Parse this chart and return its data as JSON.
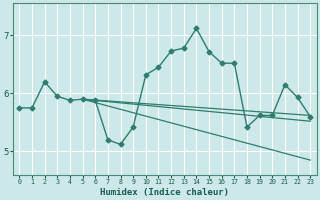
{
  "xlabel": "Humidex (Indice chaleur)",
  "bg_color": "#cce8e8",
  "grid_color": "#ffffff",
  "line_color": "#2e7d6e",
  "xlim": [
    -0.5,
    23.5
  ],
  "ylim": [
    4.6,
    7.55
  ],
  "xticks": [
    0,
    1,
    2,
    3,
    4,
    5,
    6,
    7,
    8,
    9,
    10,
    11,
    12,
    13,
    14,
    15,
    16,
    17,
    18,
    19,
    20,
    21,
    22,
    23
  ],
  "yticks": [
    5,
    6,
    7
  ],
  "main_line": {
    "x": [
      0,
      1,
      2,
      3,
      4,
      5,
      6,
      7,
      8,
      9,
      10,
      11,
      12,
      13,
      14,
      15,
      16,
      17,
      18,
      19,
      20,
      21,
      22,
      23
    ],
    "y": [
      5.75,
      5.75,
      6.2,
      5.95,
      5.88,
      5.9,
      5.88,
      5.2,
      5.12,
      5.42,
      6.32,
      6.45,
      6.73,
      6.78,
      7.12,
      6.72,
      6.52,
      6.52,
      5.42,
      5.62,
      5.62,
      6.15,
      5.93,
      5.6
    ]
  },
  "straight_lines": [
    {
      "x0": 5,
      "y0": 5.9,
      "x1": 23,
      "y1": 5.62
    },
    {
      "x0": 5,
      "y0": 5.9,
      "x1": 23,
      "y1": 5.52
    },
    {
      "x0": 5,
      "y0": 5.9,
      "x1": 23,
      "y1": 4.85
    }
  ]
}
